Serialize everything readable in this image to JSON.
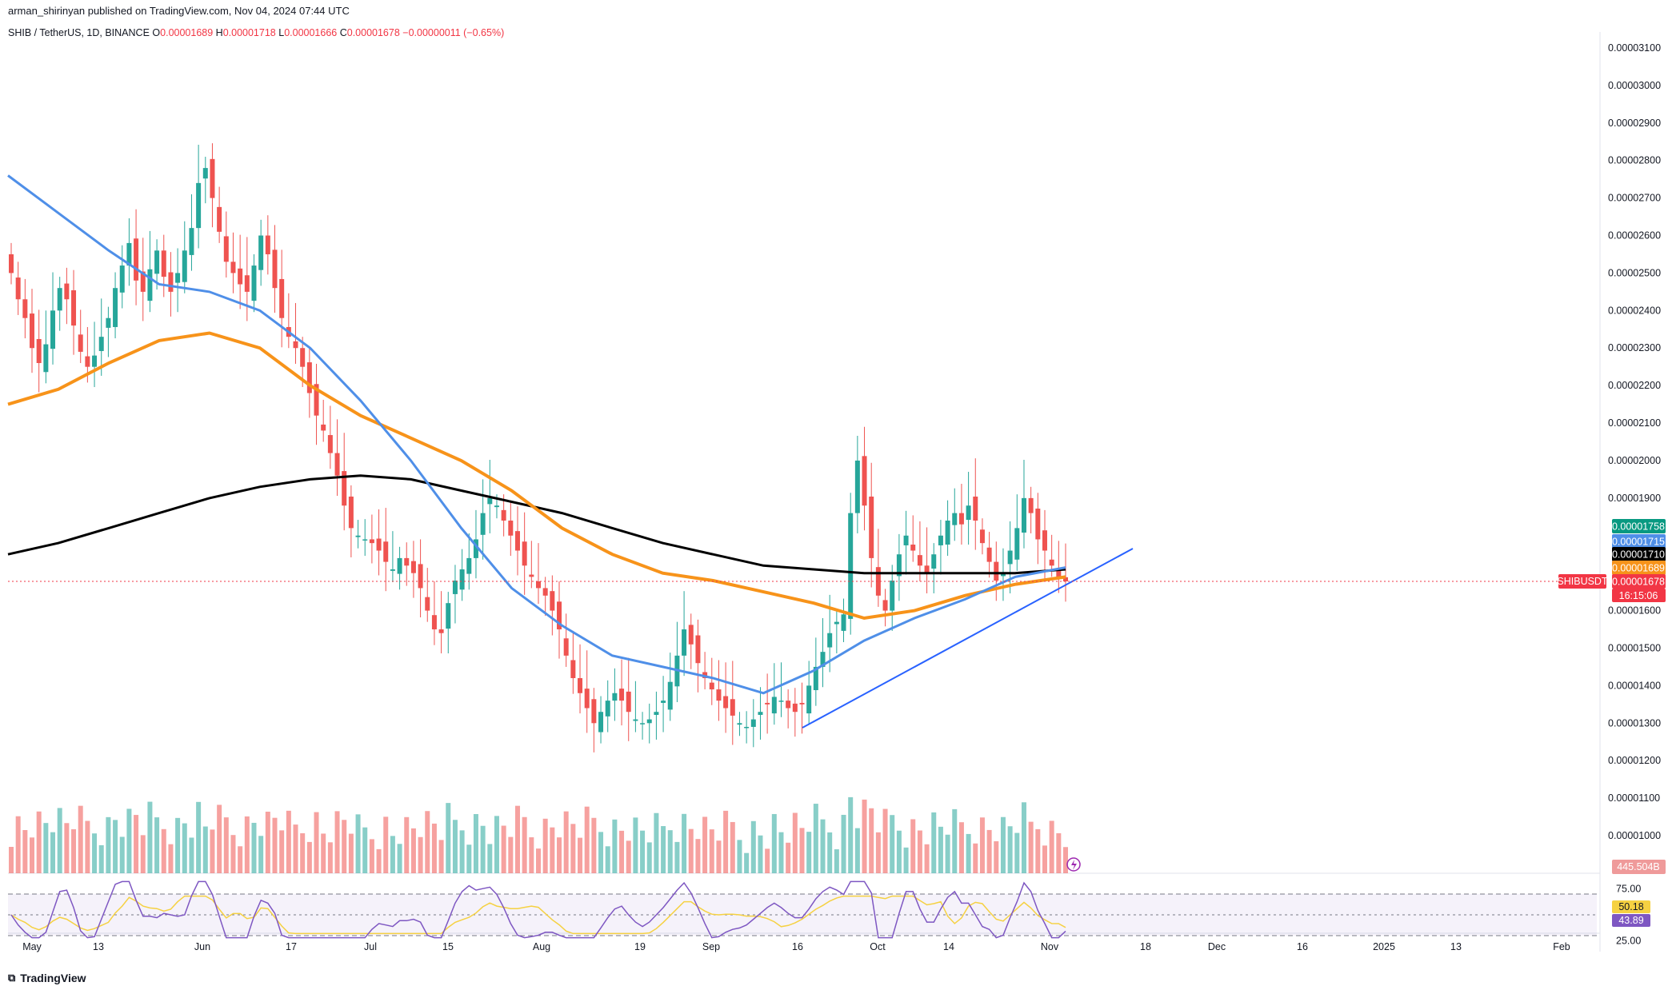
{
  "header": {
    "credit": "arman_shirinyan published on TradingView.com, Nov 04, 2024 07:44 UTC",
    "symbol": "SHIB / TetherUS, 1D, BINANCE",
    "o_label": "O",
    "o_value": "0.00001689",
    "h_label": "H",
    "h_value": "0.00001718",
    "l_label": "L",
    "l_value": "0.00001666",
    "c_label": "C",
    "c_value": "0.00001678",
    "change": "−0.00000011 (−0.65%)"
  },
  "footer": {
    "logo_text": "TradingView"
  },
  "colors": {
    "up": "#26a69a",
    "down": "#ef5350",
    "ma_black": "#000000",
    "ma_orange": "#f7931a",
    "ma_blue": "#4f8fe8",
    "ma_green": "#4caf50",
    "trendline": "#2962ff",
    "rsi": "#7e57c2",
    "rsi_ma": "#f5d142"
  },
  "chart_data": {
    "type": "candlestick",
    "price_axis": {
      "ticks": [
        "0.00003100",
        "0.00003000",
        "0.00002900",
        "0.00002800",
        "0.00002700",
        "0.00002600",
        "0.00002500",
        "0.00002400",
        "0.00002300",
        "0.00002200",
        "0.00002100",
        "0.00002000",
        "0.00001900",
        "0.00001600",
        "0.00001500",
        "0.00001400",
        "0.00001300",
        "0.00001200",
        "0.00001100",
        "0.00001000"
      ],
      "range": [
        9.5e-06,
        3.13e-05
      ]
    },
    "time_axis": {
      "labels": [
        "May",
        "13",
        "Jun",
        "17",
        "Jul",
        "15",
        "Aug",
        "19",
        "Sep",
        "16",
        "Oct",
        "14",
        "Nov",
        "18",
        "Dec",
        "16",
        "2025",
        "13",
        "Feb"
      ]
    },
    "price_tags": [
      {
        "value": "0.00001758",
        "color": "#089981"
      },
      {
        "value": "0.00001715",
        "color": "#4f8fe8"
      },
      {
        "value": "0.00001710",
        "color": "#000000"
      },
      {
        "value": "0.00001689",
        "color": "#f7931a"
      },
      {
        "value": "0.00001678",
        "color": "#f23645"
      }
    ],
    "last_price_label": "SHIBUSDT",
    "countdown": "16:15:06",
    "volume_label": "445.504B",
    "rsi": {
      "ticks": [
        "75.00",
        "25.00"
      ],
      "value": "43.89",
      "ma_value": "50.18",
      "upper": 70,
      "lower": 30
    },
    "series_close": [
      2.5,
      2.43,
      2.38,
      2.3,
      2.26,
      2.31,
      2.4,
      2.46,
      2.43,
      2.36,
      2.29,
      2.25,
      2.28,
      2.33,
      2.38,
      2.46,
      2.52,
      2.58,
      2.48,
      2.45,
      2.51,
      2.56,
      2.49,
      2.45,
      2.5,
      2.56,
      2.62,
      2.74,
      2.78,
      2.7,
      2.61,
      2.53,
      2.5,
      2.47,
      2.45,
      2.52,
      2.6,
      2.55,
      2.46,
      2.38,
      2.33,
      2.3,
      2.25,
      2.18,
      2.12,
      2.08,
      2.02,
      1.96,
      1.88,
      1.82,
      1.8,
      1.79,
      1.78,
      1.76,
      1.73,
      1.71,
      1.74,
      1.72,
      1.7,
      1.66,
      1.6,
      1.55,
      1.54,
      1.62,
      1.68,
      1.71,
      1.74,
      1.79,
      1.86,
      1.9,
      1.88,
      1.84,
      1.8,
      1.76,
      1.72,
      1.69,
      1.66,
      1.64,
      1.6,
      1.55,
      1.48,
      1.42,
      1.38,
      1.34,
      1.3,
      1.33,
      1.36,
      1.38,
      1.36,
      1.33,
      1.31,
      1.3,
      1.31,
      1.33,
      1.36,
      1.41,
      1.48,
      1.55,
      1.51,
      1.46,
      1.42,
      1.39,
      1.36,
      1.34,
      1.32,
      1.3,
      1.29,
      1.31,
      1.33,
      1.35,
      1.37,
      1.36,
      1.34,
      1.33,
      1.35,
      1.4,
      1.45,
      1.49,
      1.54,
      1.57,
      1.59,
      1.86,
      2.0,
      1.88,
      1.74,
      1.64,
      1.6,
      1.68,
      1.75,
      1.8,
      1.76,
      1.72,
      1.7,
      1.75,
      1.8,
      1.84,
      1.86,
      1.83,
      1.88,
      1.84,
      1.78,
      1.73,
      1.68,
      1.7,
      1.76,
      1.82,
      1.9,
      1.86,
      1.79,
      1.76,
      1.72,
      1.689,
      1.678
    ],
    "ma_long": [
      1.75,
      1.78,
      1.82,
      1.86,
      1.9,
      1.93,
      1.95,
      1.96,
      1.95,
      1.92,
      1.89,
      1.86,
      1.82,
      1.78,
      1.75,
      1.72,
      1.71,
      1.7,
      1.7,
      1.7,
      1.7,
      1.71
    ],
    "ma_mid": [
      2.15,
      2.19,
      2.26,
      2.32,
      2.34,
      2.3,
      2.2,
      2.12,
      2.06,
      2.0,
      1.92,
      1.82,
      1.75,
      1.7,
      1.68,
      1.65,
      1.62,
      1.58,
      1.6,
      1.64,
      1.67,
      1.69
    ],
    "ma_short": [
      2.76,
      2.66,
      2.56,
      2.47,
      2.45,
      2.4,
      2.3,
      2.16,
      2.0,
      1.82,
      1.66,
      1.56,
      1.48,
      1.45,
      1.42,
      1.38,
      1.44,
      1.52,
      1.58,
      1.63,
      1.69,
      1.715
    ]
  }
}
